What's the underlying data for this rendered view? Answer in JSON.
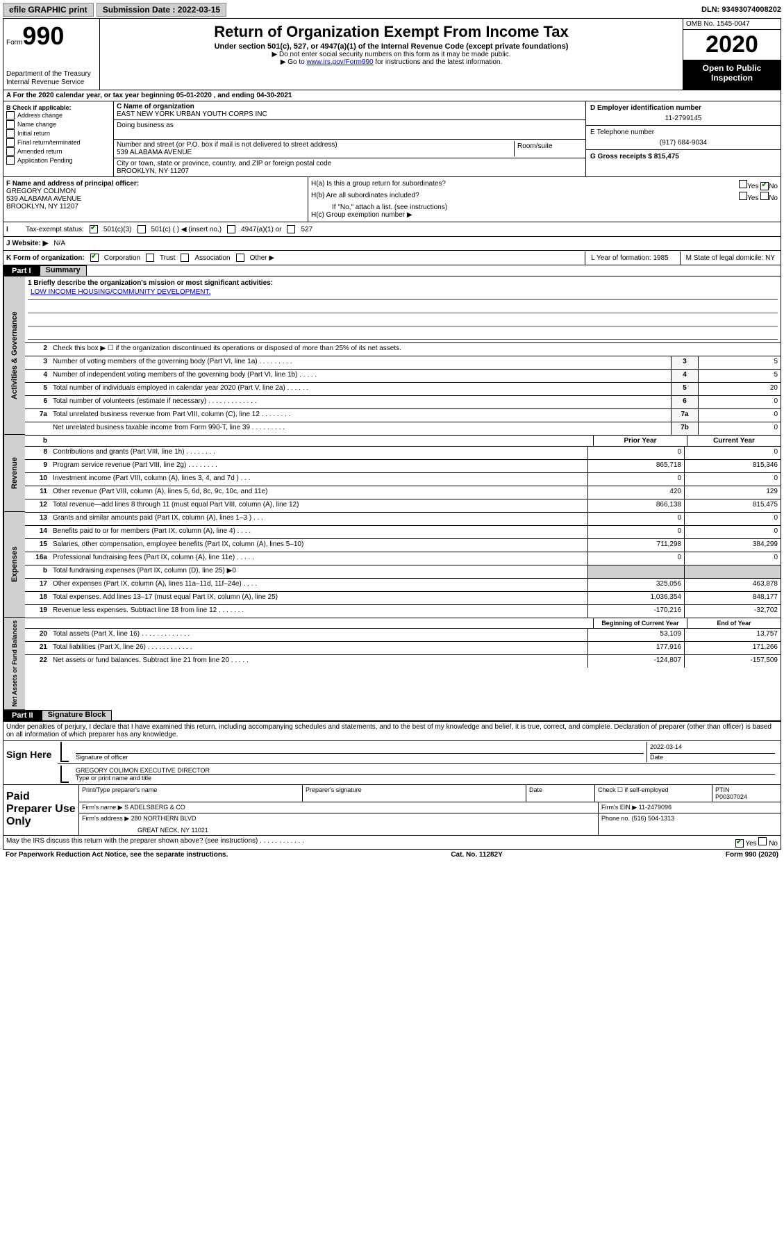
{
  "topbar": {
    "efile": "efile GRAPHIC print",
    "submission_label": "Submission Date : 2022-03-15",
    "dln": "DLN: 93493074008202"
  },
  "header": {
    "form_label": "Form",
    "form_number": "990",
    "title": "Return of Organization Exempt From Income Tax",
    "subtitle": "Under section 501(c), 527, or 4947(a)(1) of the Internal Revenue Code (except private foundations)",
    "instr1": "▶ Do not enter social security numbers on this form as it may be made public.",
    "instr2_pre": "▶ Go to ",
    "instr2_link": "www.irs.gov/Form990",
    "instr2_post": " for instructions and the latest information.",
    "dept": "Department of the Treasury\nInternal Revenue Service",
    "omb": "OMB No. 1545-0047",
    "year": "2020",
    "inspection": "Open to Public Inspection"
  },
  "row_a": "A For the 2020 calendar year, or tax year beginning 05-01-2020    , and ending 04-30-2021",
  "col_b": {
    "label": "B Check if applicable:",
    "items": [
      "Address change",
      "Name change",
      "Initial return",
      "Final return/terminated",
      "Amended return",
      "Application Pending"
    ]
  },
  "col_c": {
    "name_label": "C Name of organization",
    "name": "EAST NEW YORK URBAN YOUTH CORPS INC",
    "dba_label": "Doing business as",
    "addr_label": "Number and street (or P.O. box if mail is not delivered to street address)",
    "room_label": "Room/suite",
    "addr": "539 ALABAMA AVENUE",
    "city_label": "City or town, state or province, country, and ZIP or foreign postal code",
    "city": "BROOKLYN, NY  11207"
  },
  "col_de": {
    "d_label": "D Employer identification number",
    "d_val": "11-2799145",
    "e_label": "E Telephone number",
    "e_val": "(917) 684-9034",
    "g_label": "G Gross receipts $ 815,475"
  },
  "row_f": {
    "label": "F  Name and address of principal officer:",
    "name": "GREGORY COLIMON",
    "addr1": "539 ALABAMA AVENUE",
    "addr2": "BROOKLYN, NY  11207"
  },
  "row_h": {
    "ha": "H(a)  Is this a group return for subordinates?",
    "hb": "H(b)  Are all subordinates included?",
    "hb_note": "If \"No,\" attach a list. (see instructions)",
    "hc": "H(c)  Group exemption number ▶",
    "yes": "Yes",
    "no": "No"
  },
  "row_i": {
    "label": "Tax-exempt status:",
    "o1": "501(c)(3)",
    "o2": "501(c) (   ) ◀ (insert no.)",
    "o3": "4947(a)(1) or",
    "o4": "527"
  },
  "row_j": {
    "label": "J Website: ▶",
    "val": "N/A"
  },
  "row_k": {
    "label": "K Form of organization:",
    "corp": "Corporation",
    "trust": "Trust",
    "assoc": "Association",
    "other": "Other ▶",
    "l": "L Year of formation: 1985",
    "m": "M State of legal domicile: NY"
  },
  "parts": {
    "p1_label": "Part I",
    "p1_title": "Summary",
    "p2_label": "Part II",
    "p2_title": "Signature Block"
  },
  "summary": {
    "q1_label": "1  Briefly describe the organization's mission or most significant activities:",
    "q1_val": "LOW INCOME HOUSING/COMMUNITY DEVELOPMENT.",
    "q2": "Check this box ▶ ☐  if the organization discontinued its operations or disposed of more than 25% of its net assets.",
    "lines_ag": [
      {
        "n": "3",
        "t": "Number of voting members of the governing body (Part VI, line 1a)  .    .    .    .    .    .    .    .    .",
        "k": "3",
        "v": "5"
      },
      {
        "n": "4",
        "t": "Number of independent voting members of the governing body (Part VI, line 1b)  .    .    .    .    .",
        "k": "4",
        "v": "5"
      },
      {
        "n": "5",
        "t": "Total number of individuals employed in calendar year 2020 (Part V, line 2a)  .    .    .    .    .    .",
        "k": "5",
        "v": "20"
      },
      {
        "n": "6",
        "t": "Total number of volunteers (estimate if necessary)  .    .    .    .    .    .    .    .    .    .    .    .    .",
        "k": "6",
        "v": "0"
      },
      {
        "n": "7a",
        "t": "Total unrelated business revenue from Part VIII, column (C), line 12  .    .    .    .    .    .    .    .",
        "k": "7a",
        "v": "0"
      },
      {
        "n": "",
        "t": "Net unrelated business taxable income from Form 990-T, line 39  .    .    .    .    .    .    .    .    .",
        "k": "7b",
        "v": "0"
      }
    ],
    "hdr_prior": "Prior Year",
    "hdr_current": "Current Year",
    "revenue": [
      {
        "n": "8",
        "t": "Contributions and grants (Part VIII, line 1h)  .    .    .    .    .    .    .    .",
        "p": "0",
        "c": "0"
      },
      {
        "n": "9",
        "t": "Program service revenue (Part VIII, line 2g)  .    .    .    .    .    .    .    .",
        "p": "865,718",
        "c": "815,346"
      },
      {
        "n": "10",
        "t": "Investment income (Part VIII, column (A), lines 3, 4, and 7d )  .    .    .",
        "p": "0",
        "c": "0"
      },
      {
        "n": "11",
        "t": "Other revenue (Part VIII, column (A), lines 5, 6d, 8c, 9c, 10c, and 11e)",
        "p": "420",
        "c": "129"
      },
      {
        "n": "12",
        "t": "Total revenue—add lines 8 through 11 (must equal Part VIII, column (A), line 12)",
        "p": "866,138",
        "c": "815,475"
      }
    ],
    "expenses": [
      {
        "n": "13",
        "t": "Grants and similar amounts paid (Part IX, column (A), lines 1–3 )  .    .    .",
        "p": "0",
        "c": "0"
      },
      {
        "n": "14",
        "t": "Benefits paid to or for members (Part IX, column (A), line 4)  .    .    .    .",
        "p": "0",
        "c": "0"
      },
      {
        "n": "15",
        "t": "Salaries, other compensation, employee benefits (Part IX, column (A), lines 5–10)",
        "p": "711,298",
        "c": "384,299"
      },
      {
        "n": "16a",
        "t": "Professional fundraising fees (Part IX, column (A), line 11e)  .    .    .    .    .",
        "p": "0",
        "c": "0"
      },
      {
        "n": "b",
        "t": "Total fundraising expenses (Part IX, column (D), line 25) ▶0",
        "p": "",
        "c": "",
        "shade": true
      },
      {
        "n": "17",
        "t": "Other expenses (Part IX, column (A), lines 11a–11d, 11f–24e)  .    .    .    .",
        "p": "325,056",
        "c": "463,878"
      },
      {
        "n": "18",
        "t": "Total expenses. Add lines 13–17 (must equal Part IX, column (A), line 25)",
        "p": "1,036,354",
        "c": "848,177"
      },
      {
        "n": "19",
        "t": "Revenue less expenses. Subtract line 18 from line 12  .    .    .    .    .    .    .",
        "p": "-170,216",
        "c": "-32,702"
      }
    ],
    "hdr_boy": "Beginning of Current Year",
    "hdr_eoy": "End of Year",
    "netassets": [
      {
        "n": "20",
        "t": "Total assets (Part X, line 16)  .    .    .    .    .    .    .    .    .    .    .    .    .",
        "p": "53,109",
        "c": "13,757"
      },
      {
        "n": "21",
        "t": "Total liabilities (Part X, line 26)  .    .    .    .    .    .    .    .    .    .    .    .",
        "p": "177,916",
        "c": "171,266"
      },
      {
        "n": "22",
        "t": "Net assets or fund balances. Subtract line 21 from line 20  .    .    .    .    .",
        "p": "-124,807",
        "c": "-157,509"
      }
    ],
    "vlabels": {
      "ag": "Activities & Governance",
      "rev": "Revenue",
      "exp": "Expenses",
      "na": "Net Assets or Fund Balances"
    }
  },
  "declaration": "Under penalties of perjury, I declare that I have examined this return, including accompanying schedules and statements, and to the best of my knowledge and belief, it is true, correct, and complete. Declaration of preparer (other than officer) is based on all information of which preparer has any knowledge.",
  "sign": {
    "here": "Sign Here",
    "sig_label": "Signature of officer",
    "date_label": "Date",
    "date": "2022-03-14",
    "name": "GREGORY COLIMON  EXECUTIVE DIRECTOR",
    "name_label": "Type or print name and title"
  },
  "preparer": {
    "title": "Paid Preparer Use Only",
    "h1": "Print/Type preparer's name",
    "h2": "Preparer's signature",
    "h3": "Date",
    "h4_a": "Check ☐ if self-employed",
    "h4_b": "PTIN",
    "ptin": "P00307024",
    "firm_label": "Firm's name     ▶",
    "firm": "S ADELSBERG & CO",
    "ein_label": "Firm's EIN ▶",
    "ein": "11-2479096",
    "addr_label": "Firm's address ▶",
    "addr1": "280 NORTHERN BLVD",
    "addr2": "GREAT NECK, NY  11021",
    "phone_label": "Phone no.",
    "phone": "(516) 504-1313"
  },
  "footer": {
    "discuss": "May the IRS discuss this return with the preparer shown above? (see instructions)  .    .    .    .    .    .    .    .    .    .    .    .",
    "yes": "Yes",
    "no": "No",
    "paperwork": "For Paperwork Reduction Act Notice, see the separate instructions.",
    "cat": "Cat. No. 11282Y",
    "form": "Form 990 (2020)"
  }
}
